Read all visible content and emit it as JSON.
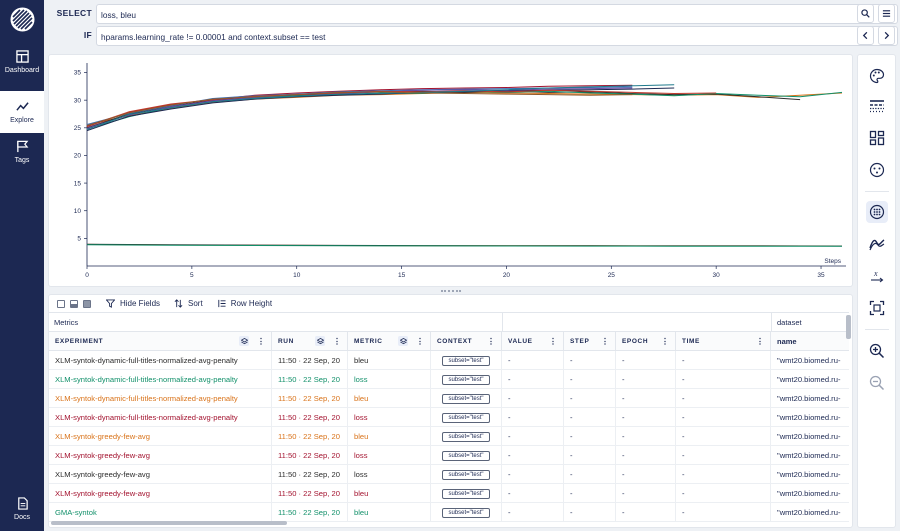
{
  "sidebar": {
    "items": [
      {
        "label": "Dashboard",
        "icon": "dashboard-icon"
      },
      {
        "label": "Explore",
        "icon": "explore-icon",
        "active": true
      },
      {
        "label": "Tags",
        "icon": "tags-icon"
      }
    ],
    "docs_label": "Docs"
  },
  "query": {
    "select_label": "SELECT",
    "select_value": "loss, bleu",
    "if_label": "IF",
    "if_value": "hparams.learning_rate != 0.00001 and context.subset == test"
  },
  "colors": {
    "navy": "#1c2852",
    "teal": "#12906a",
    "orange": "#d9731a",
    "crimson": "#a3132f",
    "dark": "#2c2c2c"
  },
  "chart_data": {
    "type": "line",
    "xlabel": "Steps",
    "ylabel": "",
    "xlim": [
      0,
      36
    ],
    "ylim": [
      0,
      36
    ],
    "x_ticks": [
      0,
      5,
      10,
      15,
      20,
      25,
      30,
      35
    ],
    "y_ticks": [
      5,
      10,
      15,
      20,
      25,
      30,
      35
    ],
    "series_colors": [
      "#d9731a",
      "#2c2c2c",
      "#12906a",
      "#a3132f",
      "#1c2852",
      "#3b6fb6",
      "#6b4aa0",
      "#c0392b",
      "#1f7a8c",
      "#8e5b2d"
    ],
    "series": [
      {
        "x": [
          0,
          2,
          4,
          6,
          8,
          10,
          12,
          14,
          16,
          18,
          20,
          22,
          24,
          26,
          28,
          30,
          32,
          34,
          36
        ],
        "values": [
          25.5,
          27.2,
          28.5,
          29.6,
          30.2,
          30.5,
          30.9,
          31.0,
          31.2,
          31.4,
          31.3,
          31.2,
          31.1,
          31.0,
          30.9,
          31.0,
          30.5,
          30.9,
          31.3
        ]
      },
      {
        "x": [
          0,
          2,
          4,
          6,
          8,
          10,
          12,
          14,
          16,
          18,
          20,
          22,
          24,
          26,
          28,
          30,
          32,
          34
        ],
        "values": [
          25.0,
          27.5,
          28.9,
          30.0,
          30.6,
          30.9,
          31.2,
          31.5,
          31.6,
          31.4,
          31.7,
          31.4,
          31.5,
          31.2,
          31.0,
          31.1,
          30.6,
          30.1
        ]
      },
      {
        "x": [
          0,
          2,
          4,
          6,
          8,
          10,
          12,
          14,
          16,
          18,
          20,
          22,
          24,
          26,
          28,
          30,
          32,
          34,
          36
        ],
        "values": [
          24.8,
          27.0,
          28.7,
          29.8,
          30.4,
          30.8,
          31.0,
          31.3,
          31.2,
          31.6,
          31.4,
          31.6,
          31.3,
          31.1,
          30.8,
          31.2,
          30.9,
          30.6,
          31.4
        ]
      },
      {
        "x": [
          0,
          2,
          4,
          6,
          8,
          10,
          12,
          14,
          16,
          18,
          20,
          22,
          24,
          26
        ],
        "values": [
          25.2,
          27.8,
          29.2,
          30.1,
          30.9,
          31.3,
          31.6,
          31.9,
          32.1,
          32.2,
          32.3,
          32.5,
          32.6,
          32.7
        ]
      },
      {
        "x": [
          0,
          2,
          4,
          6,
          8,
          10,
          12,
          14,
          16,
          18,
          20,
          22,
          24,
          26,
          28
        ],
        "values": [
          24.5,
          27.1,
          28.4,
          29.5,
          30.2,
          30.6,
          30.9,
          31.1,
          31.4,
          31.5,
          31.7,
          31.8,
          31.9,
          32.0,
          32.2
        ]
      },
      {
        "x": [
          0,
          2,
          4,
          6,
          8,
          10,
          12,
          14,
          16,
          18,
          20,
          22,
          24,
          26
        ],
        "values": [
          25.6,
          27.6,
          29.0,
          30.3,
          30.8,
          31.1,
          31.5,
          31.7,
          31.9,
          32.0,
          32.1,
          32.2,
          32.3,
          32.4
        ]
      },
      {
        "x": [
          0,
          2,
          4,
          6,
          8,
          10,
          12,
          14,
          16,
          18,
          20,
          22,
          24,
          26
        ],
        "values": [
          24.9,
          27.3,
          28.8,
          29.9,
          30.5,
          31.0,
          31.2,
          31.5,
          31.8,
          31.9,
          31.8,
          32.0,
          32.1,
          32.2
        ]
      },
      {
        "x": [
          0,
          2,
          4,
          6,
          8,
          10,
          12,
          14,
          16,
          18,
          20,
          22,
          24,
          26,
          28,
          30
        ],
        "values": [
          25.3,
          27.9,
          29.3,
          30.1,
          30.7,
          31.0,
          31.3,
          31.6,
          31.5,
          31.7,
          31.5,
          31.8,
          31.6,
          31.4,
          31.2,
          31.3
        ]
      },
      {
        "x": [
          0,
          2,
          4,
          6,
          8,
          10,
          12,
          14,
          16,
          18,
          20,
          22,
          24,
          26,
          28
        ],
        "values": [
          24.7,
          27.4,
          28.6,
          29.7,
          30.3,
          30.7,
          31.1,
          31.2,
          31.4,
          31.6,
          31.9,
          32.2,
          32.4,
          32.6,
          32.8
        ]
      },
      {
        "x": [
          0,
          2,
          4,
          6,
          8,
          10,
          12,
          14,
          16,
          18,
          20,
          22,
          24,
          26
        ],
        "values": [
          25.4,
          27.7,
          29.1,
          30.2,
          30.6,
          31.0,
          31.4,
          31.5,
          31.3,
          31.2,
          31.1,
          31.0,
          30.9,
          31.0
        ]
      },
      {
        "x": [
          0,
          4,
          8,
          12,
          16,
          20,
          24,
          28,
          32,
          36
        ],
        "values": [
          3.9,
          3.8,
          3.75,
          3.7,
          3.68,
          3.66,
          3.65,
          3.64,
          3.63,
          3.62
        ]
      },
      {
        "x": [
          0,
          4,
          8,
          12,
          16,
          20,
          24,
          28,
          32,
          36
        ],
        "values": [
          3.95,
          3.85,
          3.78,
          3.72,
          3.69,
          3.67,
          3.66,
          3.64,
          3.63,
          3.6
        ]
      },
      {
        "x": [
          0,
          4,
          8,
          12,
          16,
          20,
          24,
          28,
          32,
          36
        ],
        "values": [
          3.85,
          3.75,
          3.7,
          3.66,
          3.64,
          3.62,
          3.6,
          3.59,
          3.58,
          3.57
        ]
      }
    ]
  },
  "table_toolbar": {
    "hide_fields": "Hide Fields",
    "sort": "Sort",
    "row_height": "Row Height"
  },
  "table": {
    "group_metrics": "Metrics",
    "group_dataset": "dataset",
    "columns": {
      "experiment": "EXPERIMENT",
      "run": "RUN",
      "metric": "METRIC",
      "context": "CONTEXT",
      "value": "VALUE",
      "step": "STEP",
      "epoch": "EPOCH",
      "time": "TIME",
      "name": "name"
    },
    "rows": [
      {
        "experiment": "XLM-syntok-dynamic-full-titles-normalized-avg-penalty",
        "run": "11:50 · 22 Sep, 20",
        "metric": "bleu",
        "context": "subset=\"test\"",
        "value": "-",
        "step": "-",
        "epoch": "-",
        "time": "-",
        "name": "\"wmt20.biomed.ru-",
        "color": "#2c2c2c"
      },
      {
        "experiment": "XLM-syntok-dynamic-full-titles-normalized-avg-penalty",
        "run": "11:50 · 22 Sep, 20",
        "metric": "loss",
        "context": "subset=\"test\"",
        "value": "-",
        "step": "-",
        "epoch": "-",
        "time": "-",
        "name": "\"wmt20.biomed.ru-",
        "color": "#12906a"
      },
      {
        "experiment": "XLM-syntok-dynamic-full-titles-normalized-avg-penalty",
        "run": "11:50 · 22 Sep, 20",
        "metric": "bleu",
        "context": "subset=\"test\"",
        "value": "-",
        "step": "-",
        "epoch": "-",
        "time": "-",
        "name": "\"wmt20.biomed.ru-",
        "color": "#d9731a"
      },
      {
        "experiment": "XLM-syntok-dynamic-full-titles-normalized-avg-penalty",
        "run": "11:50 · 22 Sep, 20",
        "metric": "loss",
        "context": "subset=\"test\"",
        "value": "-",
        "step": "-",
        "epoch": "-",
        "time": "-",
        "name": "\"wmt20.biomed.ru-",
        "color": "#a3132f"
      },
      {
        "experiment": "XLM-syntok-greedy-few-avg",
        "run": "11:50 · 22 Sep, 20",
        "metric": "bleu",
        "context": "subset=\"test\"",
        "value": "-",
        "step": "-",
        "epoch": "-",
        "time": "-",
        "name": "\"wmt20.biomed.ru-",
        "color": "#d9731a"
      },
      {
        "experiment": "XLM-syntok-greedy-few-avg",
        "run": "11:50 · 22 Sep, 20",
        "metric": "loss",
        "context": "subset=\"test\"",
        "value": "-",
        "step": "-",
        "epoch": "-",
        "time": "-",
        "name": "\"wmt20.biomed.ru-",
        "color": "#a3132f"
      },
      {
        "experiment": "XLM-syntok-greedy-few-avg",
        "run": "11:50 · 22 Sep, 20",
        "metric": "loss",
        "context": "subset=\"test\"",
        "value": "-",
        "step": "-",
        "epoch": "-",
        "time": "-",
        "name": "\"wmt20.biomed.ru-",
        "color": "#2c2c2c"
      },
      {
        "experiment": "XLM-syntok-greedy-few-avg",
        "run": "11:50 · 22 Sep, 20",
        "metric": "bleu",
        "context": "subset=\"test\"",
        "value": "-",
        "step": "-",
        "epoch": "-",
        "time": "-",
        "name": "\"wmt20.biomed.ru-",
        "color": "#a3132f"
      },
      {
        "experiment": "GMA-syntok",
        "run": "11:50 · 22 Sep, 20",
        "metric": "bleu",
        "context": "subset=\"test\"",
        "value": "-",
        "step": "-",
        "epoch": "-",
        "time": "-",
        "name": "\"wmt20.biomed.ru-",
        "color": "#12906a"
      }
    ]
  }
}
